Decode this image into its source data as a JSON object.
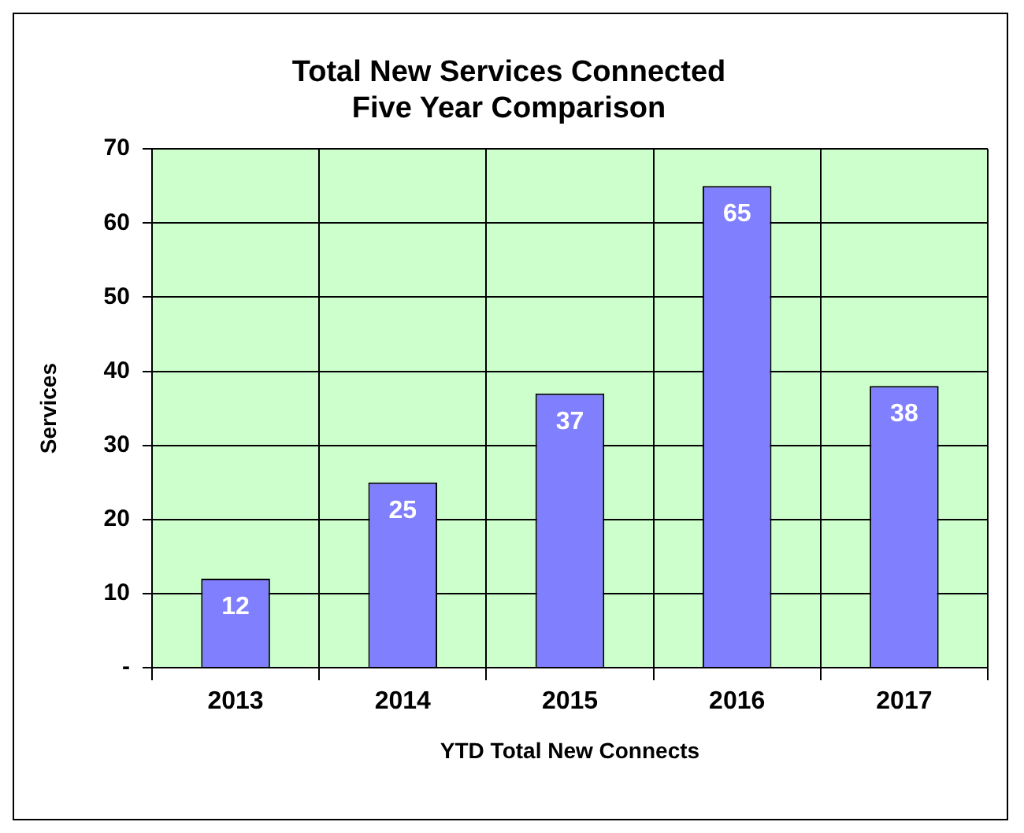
{
  "chart_data": {
    "type": "bar",
    "title": "Total New Services Connected\nFive Year Comparison",
    "xlabel": "YTD Total New Connects",
    "ylabel": "Services",
    "categories": [
      "2013",
      "2014",
      "2015",
      "2016",
      "2017"
    ],
    "values": [
      12,
      25,
      37,
      65,
      38
    ],
    "color": "#8080ff",
    "ylim": [
      0,
      70
    ],
    "yticks": [
      {
        "value": 0,
        "label": "-"
      },
      10,
      20,
      30,
      40,
      50,
      60,
      70
    ],
    "grid": true,
    "data_labels": true
  }
}
